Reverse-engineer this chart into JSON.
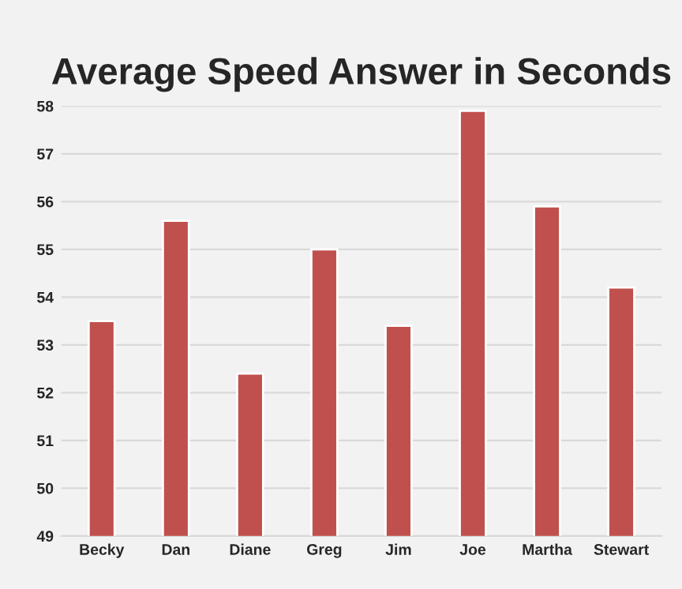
{
  "chart_data": {
    "type": "bar",
    "title": "Average Speed Answer in Seconds",
    "categories": [
      "Becky",
      "Dan",
      "Diane",
      "Greg",
      "Jim",
      "Joe",
      "Martha",
      "Stewart"
    ],
    "values": [
      53.5,
      55.6,
      52.4,
      55.0,
      53.4,
      57.9,
      55.9,
      54.2
    ],
    "color": "#c0504d",
    "ylim": [
      49,
      58
    ],
    "yticks": [
      49,
      50,
      51,
      52,
      53,
      54,
      55,
      56,
      57,
      58
    ],
    "grid": "y"
  }
}
